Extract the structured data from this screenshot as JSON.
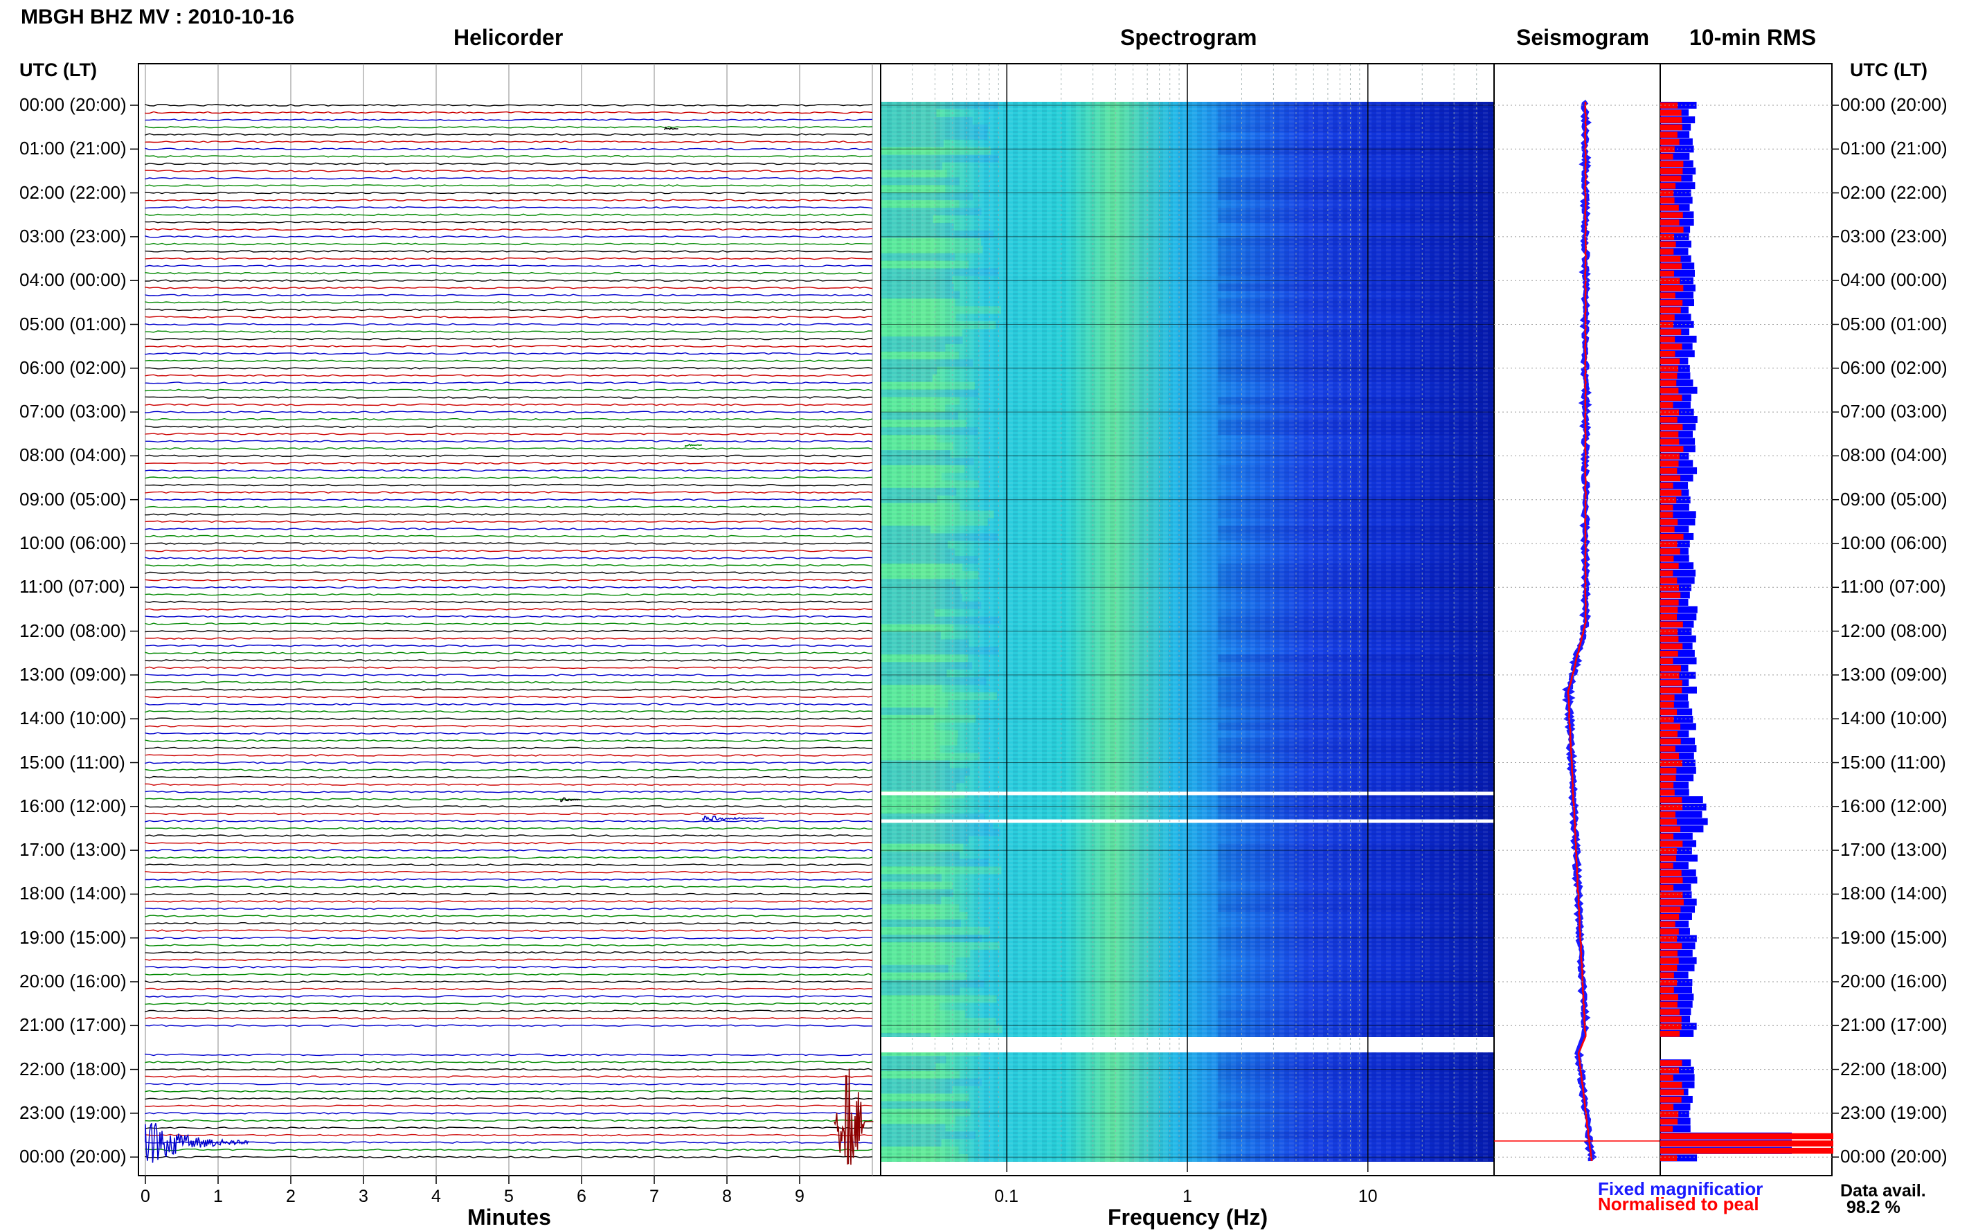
{
  "title": "MBGH BHZ MV : 2010-10-16",
  "panels": {
    "helicorder": "Helicorder",
    "spectrogram": "Spectrogram",
    "seismogram": "Seismogram",
    "rms": "10-min RMS"
  },
  "utc_header_left": "UTC (LT)",
  "utc_header_right": "UTC (LT)",
  "time_labels": [
    "00:00 (20:00)",
    "01:00 (21:00)",
    "02:00 (22:00)",
    "03:00 (23:00)",
    "04:00 (00:00)",
    "05:00 (01:00)",
    "06:00 (02:00)",
    "07:00 (03:00)",
    "08:00 (04:00)",
    "09:00 (05:00)",
    "10:00 (06:00)",
    "11:00 (07:00)",
    "12:00 (08:00)",
    "13:00 (09:00)",
    "14:00 (10:00)",
    "15:00 (11:00)",
    "16:00 (12:00)",
    "17:00 (13:00)",
    "18:00 (14:00)",
    "19:00 (15:00)",
    "20:00 (16:00)",
    "21:00 (17:00)",
    "22:00 (18:00)",
    "23:00 (19:00)",
    "00:00 (20:00)"
  ],
  "helicorder_xticks": [
    "0",
    "1",
    "2",
    "3",
    "4",
    "5",
    "6",
    "7",
    "8",
    "9"
  ],
  "helicorder_xlabel": "Minutes",
  "spectrogram_xticks": [
    "0.1",
    "1",
    "10"
  ],
  "spectrogram_xlabel": "Frequency (Hz)",
  "legend": {
    "fixed": "Fixed magnificatior",
    "normalised": "Normalised to peal",
    "fixed_color": "#1a1aff",
    "normalised_color": "#ff0000"
  },
  "data_avail": {
    "label": "Data avail.",
    "value": "98.2 %"
  },
  "colors": {
    "trace_cycle": [
      "#000000",
      "#cc0000",
      "#0000cc",
      "#008800"
    ],
    "rms_fixed": "#0000ff",
    "rms_normalised": "#ff0000",
    "spectrogram_colormap": [
      "#00008b",
      "#0000ff",
      "#1e90ff",
      "#00bfff",
      "#40e0d0",
      "#7fff7f"
    ]
  },
  "chart_data": {
    "type": "heatmap",
    "title": "MBGH BHZ MV : 2010-10-16",
    "helicorder": {
      "x_range_minutes": [
        0,
        10
      ],
      "lines": 145,
      "minutes_per_line": 10,
      "gap_utc": [
        "21:20",
        "21:40"
      ],
      "events": [
        {
          "utc": "00:00",
          "minute": 0.2,
          "desc": "large wavetrain"
        },
        {
          "utc": "23:50",
          "minute": 9.5,
          "desc": "large wavetrain"
        }
      ]
    },
    "spectrogram": {
      "x_scale": "log",
      "x_range_hz": [
        0.02,
        50
      ],
      "xlabel": "Frequency (Hz)",
      "gaps_utc": [
        "16:00",
        "21:20"
      ]
    },
    "rms": {
      "series": [
        {
          "name": "Fixed magnificatior",
          "color": "#0000ff"
        },
        {
          "name": "Normalised to peal",
          "color": "#ff0000"
        }
      ],
      "peak_utc": "23:50"
    },
    "data_availability_percent": 98.2
  }
}
